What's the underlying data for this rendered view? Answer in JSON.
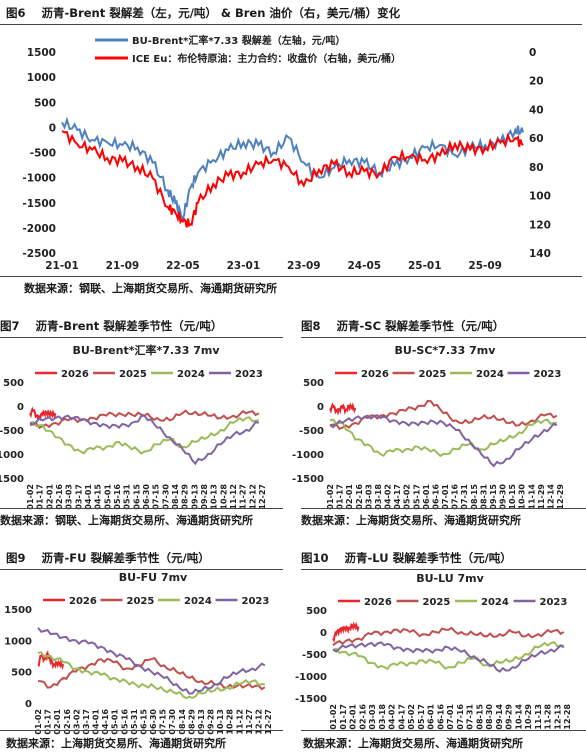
{
  "figures": {
    "fig6": {
      "label": "图6",
      "title": "沥青-Brent 裂解差（左，元/吨） & Bren 油价（右，美元/桶）变化"
    },
    "fig7": {
      "label": "图7",
      "title": "沥青-Brent 裂解差季节性（元/吨）"
    },
    "fig8": {
      "label": "图8",
      "title": "沥青-SC 裂解差季节性（元/吨）"
    },
    "fig9": {
      "label": "图9",
      "title": "沥青-FU 裂解差季节性（元/吨）"
    },
    "fig10": {
      "label": "图10",
      "title": "沥青-LU 裂解差季节性（元/吨）"
    }
  },
  "sources": {
    "fig6": "数据来源：钢联、上海期货交易所、海通期货研究所",
    "fig7": "数据来源：钢联、上海期货交易所、海通期货研究所",
    "fig8": "数据来源：上海期货交易所、海通期货研究所",
    "fig9": "数据来源：上海期货交易所、海通期货研究所",
    "fig10": "数据来源：上海期货交易所、海通期货研究所"
  },
  "chart_data": [
    {
      "id": "fig6",
      "type": "line",
      "x_ticks": [
        "21-01",
        "21-09",
        "22-05",
        "23-01",
        "23-09",
        "24-05",
        "25-01",
        "25-09"
      ],
      "ylim_left": [
        -2500,
        1500
      ],
      "yticks_left": [
        "1500",
        "1000",
        "500",
        "0",
        "-500",
        "-1000",
        "-1500",
        "-2000",
        "-2500"
      ],
      "ylim_right_inverted": [
        0,
        140
      ],
      "yticks_right": [
        "0",
        "20",
        "40",
        "60",
        "80",
        "100",
        "120",
        "140"
      ],
      "grid": false,
      "legend_position": "top-center",
      "series": [
        {
          "name": "BU-Brent*汇率*7.33 裂解差（左轴，元/吨）",
          "axis": "left",
          "color": "#4f81bd",
          "x": [
            "21-01",
            "21-03",
            "21-05",
            "21-07",
            "21-09",
            "21-11",
            "22-01",
            "22-03",
            "22-04",
            "22-05",
            "22-06",
            "22-07",
            "22-09",
            "22-11",
            "23-01",
            "23-03",
            "23-05",
            "23-07",
            "23-09",
            "23-11",
            "24-01",
            "24-03",
            "24-05",
            "24-07",
            "24-09",
            "24-11",
            "25-01",
            "25-03",
            "25-05",
            "25-07",
            "25-09",
            "25-11",
            "26-01",
            "26-02"
          ],
          "values": [
            100,
            -50,
            -250,
            -300,
            -350,
            -400,
            -700,
            -1250,
            -1500,
            -1800,
            -1200,
            -900,
            -650,
            -450,
            -300,
            -350,
            -500,
            -200,
            -700,
            -1000,
            -800,
            -650,
            -700,
            -900,
            -750,
            -600,
            -400,
            -350,
            -550,
            -400,
            -350,
            -300,
            -50,
            -100
          ]
        },
        {
          "name": "ICE Eu：布伦特原油：主力合约：收盘价（右轴，美元/桶）",
          "axis": "right",
          "color": "#ff0000",
          "x": [
            "21-01",
            "21-03",
            "21-05",
            "21-07",
            "21-09",
            "21-11",
            "22-01",
            "22-03",
            "22-04",
            "22-05",
            "22-06",
            "22-07",
            "22-09",
            "22-11",
            "23-01",
            "23-03",
            "23-05",
            "23-07",
            "23-09",
            "23-11",
            "24-01",
            "24-03",
            "24-05",
            "24-07",
            "24-09",
            "24-11",
            "25-01",
            "25-03",
            "25-05",
            "25-07",
            "25-09",
            "25-11",
            "26-01",
            "26-02"
          ],
          "values": [
            55,
            64,
            68,
            74,
            76,
            80,
            88,
            108,
            112,
            118,
            120,
            105,
            92,
            86,
            84,
            78,
            75,
            80,
            93,
            82,
            78,
            84,
            83,
            85,
            73,
            73,
            75,
            72,
            64,
            68,
            67,
            63,
            60,
            65
          ]
        }
      ]
    },
    {
      "id": "fig7",
      "type": "line",
      "title": "BU-Brent*汇率*7.33 7mv",
      "ylim": [
        -1500,
        500
      ],
      "yticks": [
        "500",
        "0",
        "-500",
        "-1000",
        "-1500"
      ],
      "x_ticks": [
        "01-02",
        "01-17",
        "02-01",
        "02-16",
        "03-03",
        "03-17",
        "04-01",
        "04-15",
        "05-01",
        "05-16",
        "05-31",
        "06-15",
        "06-30",
        "07-15",
        "07-30",
        "08-14",
        "08-29",
        "09-13",
        "09-28",
        "10-13",
        "10-28",
        "11-12",
        "11-27",
        "12-12",
        "12-27"
      ],
      "legend_position": "top",
      "series": [
        {
          "name": "2026",
          "color": "#e8262b",
          "x": [
            0,
            5,
            10,
            15,
            20,
            25,
            30,
            35,
            40
          ],
          "values": [
            -150,
            -100,
            -200,
            -220,
            -180,
            -120,
            -150,
            -200,
            -150
          ]
        },
        {
          "name": "2025",
          "color": "#c0504d",
          "x": [
            0,
            20,
            40,
            60,
            80,
            100,
            120,
            140,
            160,
            180,
            200,
            220,
            240,
            260,
            280,
            300,
            320,
            340,
            360
          ],
          "values": [
            -400,
            -420,
            -350,
            -300,
            -280,
            -250,
            -200,
            -150,
            -180,
            -200,
            -250,
            -300,
            -150,
            -120,
            -200,
            -250,
            -200,
            -150,
            -150
          ]
        },
        {
          "name": "2024",
          "color": "#9bbb59",
          "x": [
            0,
            20,
            40,
            60,
            80,
            100,
            120,
            140,
            160,
            180,
            200,
            220,
            240,
            260,
            280,
            300,
            320,
            340,
            360
          ],
          "values": [
            -350,
            -400,
            -650,
            -800,
            -950,
            -900,
            -850,
            -750,
            -900,
            -950,
            -800,
            -700,
            -850,
            -750,
            -650,
            -500,
            -350,
            -250,
            -300
          ]
        },
        {
          "name": "2023",
          "color": "#8064a2",
          "x": [
            0,
            20,
            40,
            60,
            80,
            100,
            120,
            140,
            160,
            180,
            200,
            220,
            240,
            260,
            280,
            300,
            320,
            340,
            360
          ],
          "values": [
            -350,
            -300,
            -250,
            -200,
            -300,
            -350,
            -400,
            -450,
            -350,
            -200,
            -450,
            -650,
            -900,
            -1200,
            -1000,
            -800,
            -600,
            -500,
            -350
          ]
        }
      ]
    },
    {
      "id": "fig8",
      "type": "line",
      "title": "BU-SC*7.33 7mv",
      "ylim": [
        -1500,
        500
      ],
      "yticks": [
        "500",
        "0",
        "-500",
        "-1000",
        "-1500"
      ],
      "x_ticks": [
        "01-02",
        "01-17",
        "02-01",
        "02-16",
        "03-03",
        "03-18",
        "04-02",
        "04-17",
        "05-02",
        "05-17",
        "06-01",
        "06-16",
        "07-01",
        "07-16",
        "07-31",
        "08-15",
        "08-31",
        "09-15",
        "09-30",
        "10-15",
        "10-30",
        "11-14",
        "11-29",
        "12-14",
        "12-29"
      ],
      "legend_position": "top",
      "series": [
        {
          "name": "2026",
          "color": "#e8262b",
          "x": [
            0,
            5,
            10,
            15,
            20,
            25,
            30,
            35,
            40
          ],
          "values": [
            -50,
            -20,
            -100,
            -60,
            -30,
            -80,
            0,
            -50,
            -40
          ]
        },
        {
          "name": "2025",
          "color": "#c0504d",
          "x": [
            0,
            20,
            40,
            60,
            80,
            100,
            120,
            140,
            160,
            180,
            200,
            220,
            240,
            260,
            280,
            300,
            320,
            340,
            360
          ],
          "values": [
            -400,
            -450,
            -350,
            -250,
            -200,
            -150,
            -100,
            0,
            100,
            -150,
            -300,
            -350,
            -250,
            -200,
            -350,
            -400,
            -300,
            -200,
            -200
          ]
        },
        {
          "name": "2024",
          "color": "#9bbb59",
          "x": [
            0,
            20,
            40,
            60,
            80,
            100,
            120,
            140,
            160,
            180,
            200,
            220,
            240,
            260,
            280,
            300,
            320,
            340,
            360
          ],
          "values": [
            -300,
            -350,
            -700,
            -800,
            -1000,
            -950,
            -900,
            -850,
            -950,
            -1000,
            -900,
            -800,
            -900,
            -800,
            -700,
            -550,
            -400,
            -300,
            -350
          ]
        },
        {
          "name": "2023",
          "color": "#8064a2",
          "x": [
            0,
            20,
            40,
            60,
            80,
            100,
            120,
            140,
            160,
            180,
            200,
            220,
            240,
            260,
            280,
            300,
            320,
            340,
            360
          ],
          "values": [
            -400,
            -350,
            -250,
            -200,
            -250,
            -300,
            -350,
            -400,
            -300,
            -350,
            -500,
            -700,
            -1000,
            -1250,
            -1100,
            -900,
            -700,
            -500,
            -400
          ]
        }
      ]
    },
    {
      "id": "fig9",
      "type": "line",
      "title": "BU-FU 7mv",
      "ylim": [
        0,
        1500
      ],
      "yticks": [
        "1500",
        "1000",
        "500",
        "0"
      ],
      "x_ticks": [
        "01-02",
        "01-17",
        "02-01",
        "02-16",
        "03-02",
        "03-17",
        "04-01",
        "04-16",
        "05-01",
        "05-16",
        "05-31",
        "06-15",
        "06-30",
        "07-15",
        "07-30",
        "08-14",
        "08-29",
        "09-13",
        "09-28",
        "10-13",
        "10-28",
        "11-12",
        "11-27",
        "12-12",
        "12-27"
      ],
      "legend_position": "top",
      "series": [
        {
          "name": "2026",
          "color": "#e8262b",
          "x": [
            0,
            5,
            10,
            15,
            20,
            25,
            30,
            35,
            40
          ],
          "values": [
            600,
            750,
            700,
            800,
            650,
            620,
            640,
            600,
            620
          ]
        },
        {
          "name": "2025",
          "color": "#c0504d",
          "x": [
            0,
            20,
            40,
            60,
            80,
            100,
            120,
            140,
            160,
            180,
            200,
            220,
            240,
            260,
            280,
            300,
            320,
            340,
            360
          ],
          "values": [
            350,
            250,
            400,
            500,
            600,
            700,
            650,
            550,
            600,
            700,
            600,
            500,
            400,
            350,
            300,
            250,
            300,
            250,
            250
          ]
        },
        {
          "name": "2024",
          "color": "#9bbb59",
          "x": [
            0,
            20,
            40,
            60,
            80,
            100,
            120,
            140,
            160,
            180,
            200,
            220,
            240,
            260,
            280,
            300,
            320,
            340,
            360
          ],
          "values": [
            800,
            750,
            650,
            550,
            500,
            450,
            400,
            350,
            250,
            300,
            200,
            150,
            100,
            150,
            200,
            250,
            300,
            350,
            300
          ]
        },
        {
          "name": "2023",
          "color": "#8064a2",
          "x": [
            0,
            20,
            40,
            60,
            80,
            100,
            120,
            140,
            160,
            180,
            200,
            220,
            240,
            260,
            280,
            300,
            320,
            340,
            360
          ],
          "values": [
            1200,
            1100,
            1050,
            1000,
            950,
            900,
            800,
            700,
            600,
            500,
            400,
            300,
            150,
            200,
            300,
            400,
            500,
            550,
            600
          ]
        }
      ]
    },
    {
      "id": "fig10",
      "type": "line",
      "title": "BU-LU 7mv",
      "ylim": [
        -1500,
        500
      ],
      "yticks": [
        "500",
        "0",
        "-500",
        "-1000",
        "-1500"
      ],
      "x_ticks": [
        "01-02",
        "01-17",
        "02-01",
        "02-16",
        "03-03",
        "03-18",
        "04-02",
        "04-17",
        "05-02",
        "05-17",
        "06-01",
        "06-16",
        "07-01",
        "07-16",
        "07-31",
        "08-15",
        "08-30",
        "09-14",
        "09-29",
        "10-14",
        "10-29",
        "11-13",
        "11-28",
        "12-13",
        "12-28"
      ],
      "legend_position": "top",
      "series": [
        {
          "name": "2026",
          "color": "#e8262b",
          "x": [
            0,
            5,
            10,
            15,
            20,
            25,
            30,
            35,
            40
          ],
          "values": [
            -150,
            -50,
            50,
            100,
            50,
            100,
            150,
            100,
            120
          ]
        },
        {
          "name": "2025",
          "color": "#c0504d",
          "x": [
            0,
            20,
            40,
            60,
            80,
            100,
            120,
            140,
            160,
            180,
            200,
            220,
            240,
            260,
            280,
            300,
            320,
            340,
            360
          ],
          "values": [
            -300,
            -200,
            -150,
            -50,
            0,
            50,
            0,
            -50,
            0,
            50,
            0,
            -50,
            -100,
            -50,
            0,
            -100,
            -50,
            0,
            0
          ]
        },
        {
          "name": "2024",
          "color": "#9bbb59",
          "x": [
            0,
            20,
            40,
            60,
            80,
            100,
            120,
            140,
            160,
            180,
            200,
            220,
            240,
            260,
            280,
            300,
            320,
            340,
            360
          ],
          "values": [
            -400,
            -450,
            -550,
            -700,
            -800,
            -750,
            -700,
            -650,
            -700,
            -800,
            -700,
            -600,
            -750,
            -700,
            -650,
            -500,
            -350,
            -250,
            -300
          ]
        },
        {
          "name": "2023",
          "color": "#8064a2",
          "x": [
            0,
            20,
            40,
            60,
            80,
            100,
            120,
            140,
            160,
            180,
            200,
            220,
            240,
            260,
            280,
            300,
            320,
            340,
            360
          ],
          "values": [
            -400,
            -350,
            -300,
            -250,
            -300,
            -350,
            -400,
            -450,
            -400,
            -350,
            -450,
            -550,
            -700,
            -900,
            -800,
            -650,
            -500,
            -400,
            -350
          ]
        }
      ]
    }
  ]
}
